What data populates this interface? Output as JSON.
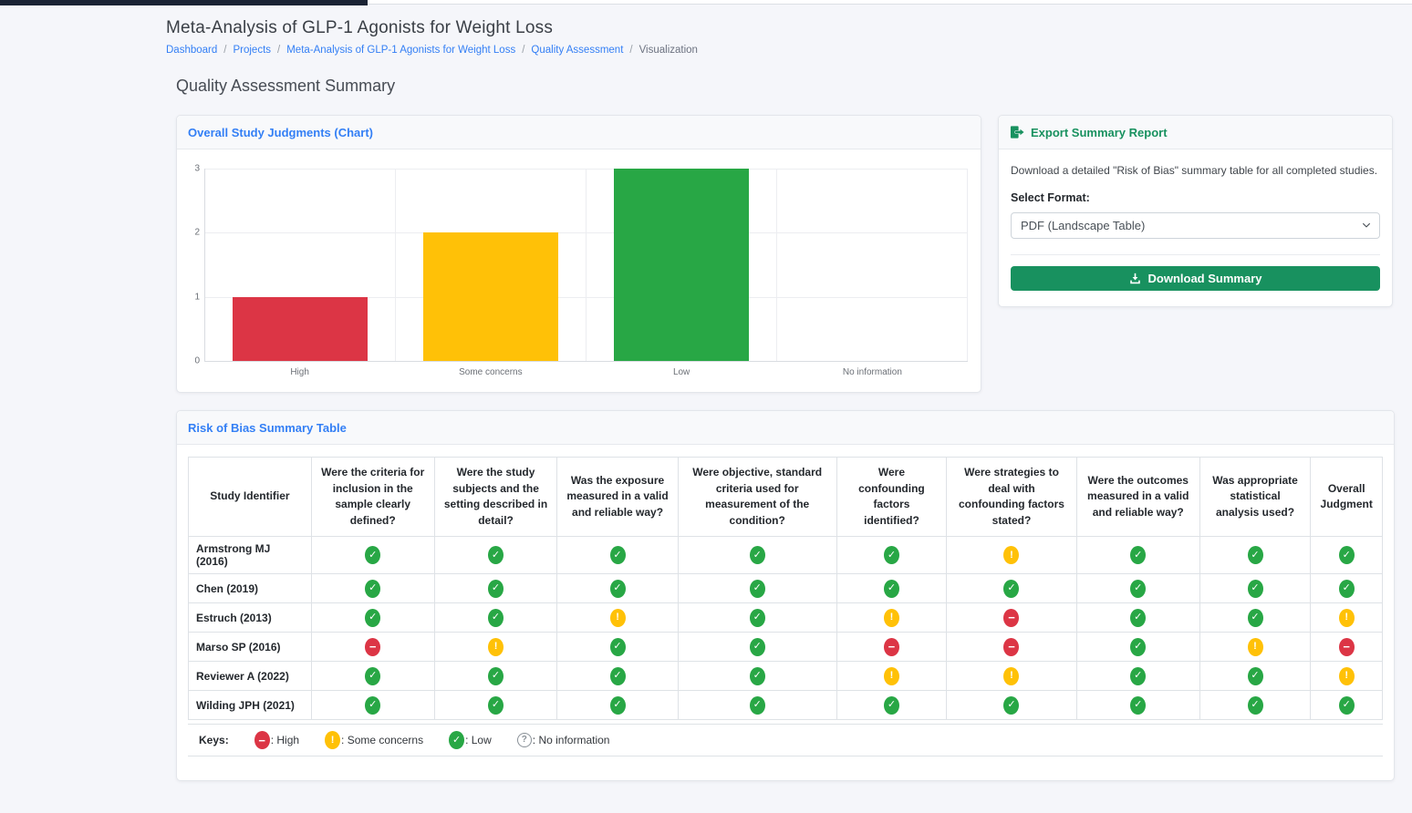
{
  "page": {
    "title": "Meta-Analysis of GLP-1 Agonists for Weight Loss",
    "heading": "Quality Assessment Summary"
  },
  "breadcrumb": {
    "separator": "/",
    "items": [
      {
        "label": "Dashboard",
        "link": true
      },
      {
        "label": "Projects",
        "link": true
      },
      {
        "label": "Meta-Analysis of GLP-1 Agonists for Weight Loss",
        "link": true
      },
      {
        "label": "Quality Assessment",
        "link": true
      },
      {
        "label": "Visualization",
        "link": false
      }
    ]
  },
  "chart_card": {
    "title": "Overall Study Judgments (Chart)"
  },
  "chart_data": {
    "type": "bar",
    "title": "Overall Study Judgments (Chart)",
    "categories": [
      "High",
      "Some concerns",
      "Low",
      "No information"
    ],
    "values": [
      1,
      2,
      3,
      0
    ],
    "colors": [
      "#dc3545",
      "#ffc107",
      "#28a745",
      "#6c757d"
    ],
    "xlabel": "",
    "ylabel": "",
    "ylim": [
      0,
      3
    ],
    "yticks": [
      0,
      1,
      2,
      3
    ],
    "grid": true,
    "legend": false
  },
  "export_card": {
    "title": "Export Summary Report",
    "description": "Download a detailed \"Risk of Bias\" summary table for all completed studies.",
    "format_label": "Select Format:",
    "format_value": "PDF (Landscape Table)",
    "download_label": "Download Summary"
  },
  "table_card": {
    "title": "Risk of Bias Summary Table",
    "columns": [
      "Study Identifier",
      "Were the criteria for inclusion in the sample clearly defined?",
      "Were the study subjects and the setting described in detail?",
      "Was the exposure measured in a valid and reliable way?",
      "Were objective, standard criteria used for measurement of the condition?",
      "Were confounding factors identified?",
      "Were strategies to deal with confounding factors stated?",
      "Were the outcomes measured in a valid and reliable way?",
      "Was appropriate statistical analysis used?",
      "Overall Judgment"
    ],
    "rows": [
      {
        "study": "Armstrong MJ (2016)",
        "judgments": [
          "low",
          "low",
          "low",
          "low",
          "low",
          "some",
          "low",
          "low",
          "low"
        ]
      },
      {
        "study": "Chen (2019)",
        "judgments": [
          "low",
          "low",
          "low",
          "low",
          "low",
          "low",
          "low",
          "low",
          "low"
        ]
      },
      {
        "study": "Estruch (2013)",
        "judgments": [
          "low",
          "low",
          "some",
          "low",
          "some",
          "high",
          "low",
          "low",
          "some"
        ]
      },
      {
        "study": "Marso SP (2016)",
        "judgments": [
          "high",
          "some",
          "low",
          "low",
          "high",
          "high",
          "low",
          "some",
          "high"
        ]
      },
      {
        "study": "Reviewer A (2022)",
        "judgments": [
          "low",
          "low",
          "low",
          "low",
          "some",
          "some",
          "low",
          "low",
          "some"
        ]
      },
      {
        "study": "Wilding JPH (2021)",
        "judgments": [
          "low",
          "low",
          "low",
          "low",
          "low",
          "low",
          "low",
          "low",
          "low"
        ]
      }
    ],
    "status_glyphs": {
      "low": "✓",
      "some": "!",
      "high": "−",
      "noinfo": "?"
    },
    "status_colors": {
      "low": "#28a745",
      "some": "#ffc107",
      "high": "#dc3545",
      "noinfo": "#899097"
    },
    "keys": {
      "label": "Keys:",
      "separator": ": ",
      "items": [
        {
          "status": "high",
          "label": "High"
        },
        {
          "status": "some",
          "label": "Some concerns"
        },
        {
          "status": "low",
          "label": "Low"
        },
        {
          "status": "noinfo",
          "label": "No information"
        }
      ]
    }
  }
}
